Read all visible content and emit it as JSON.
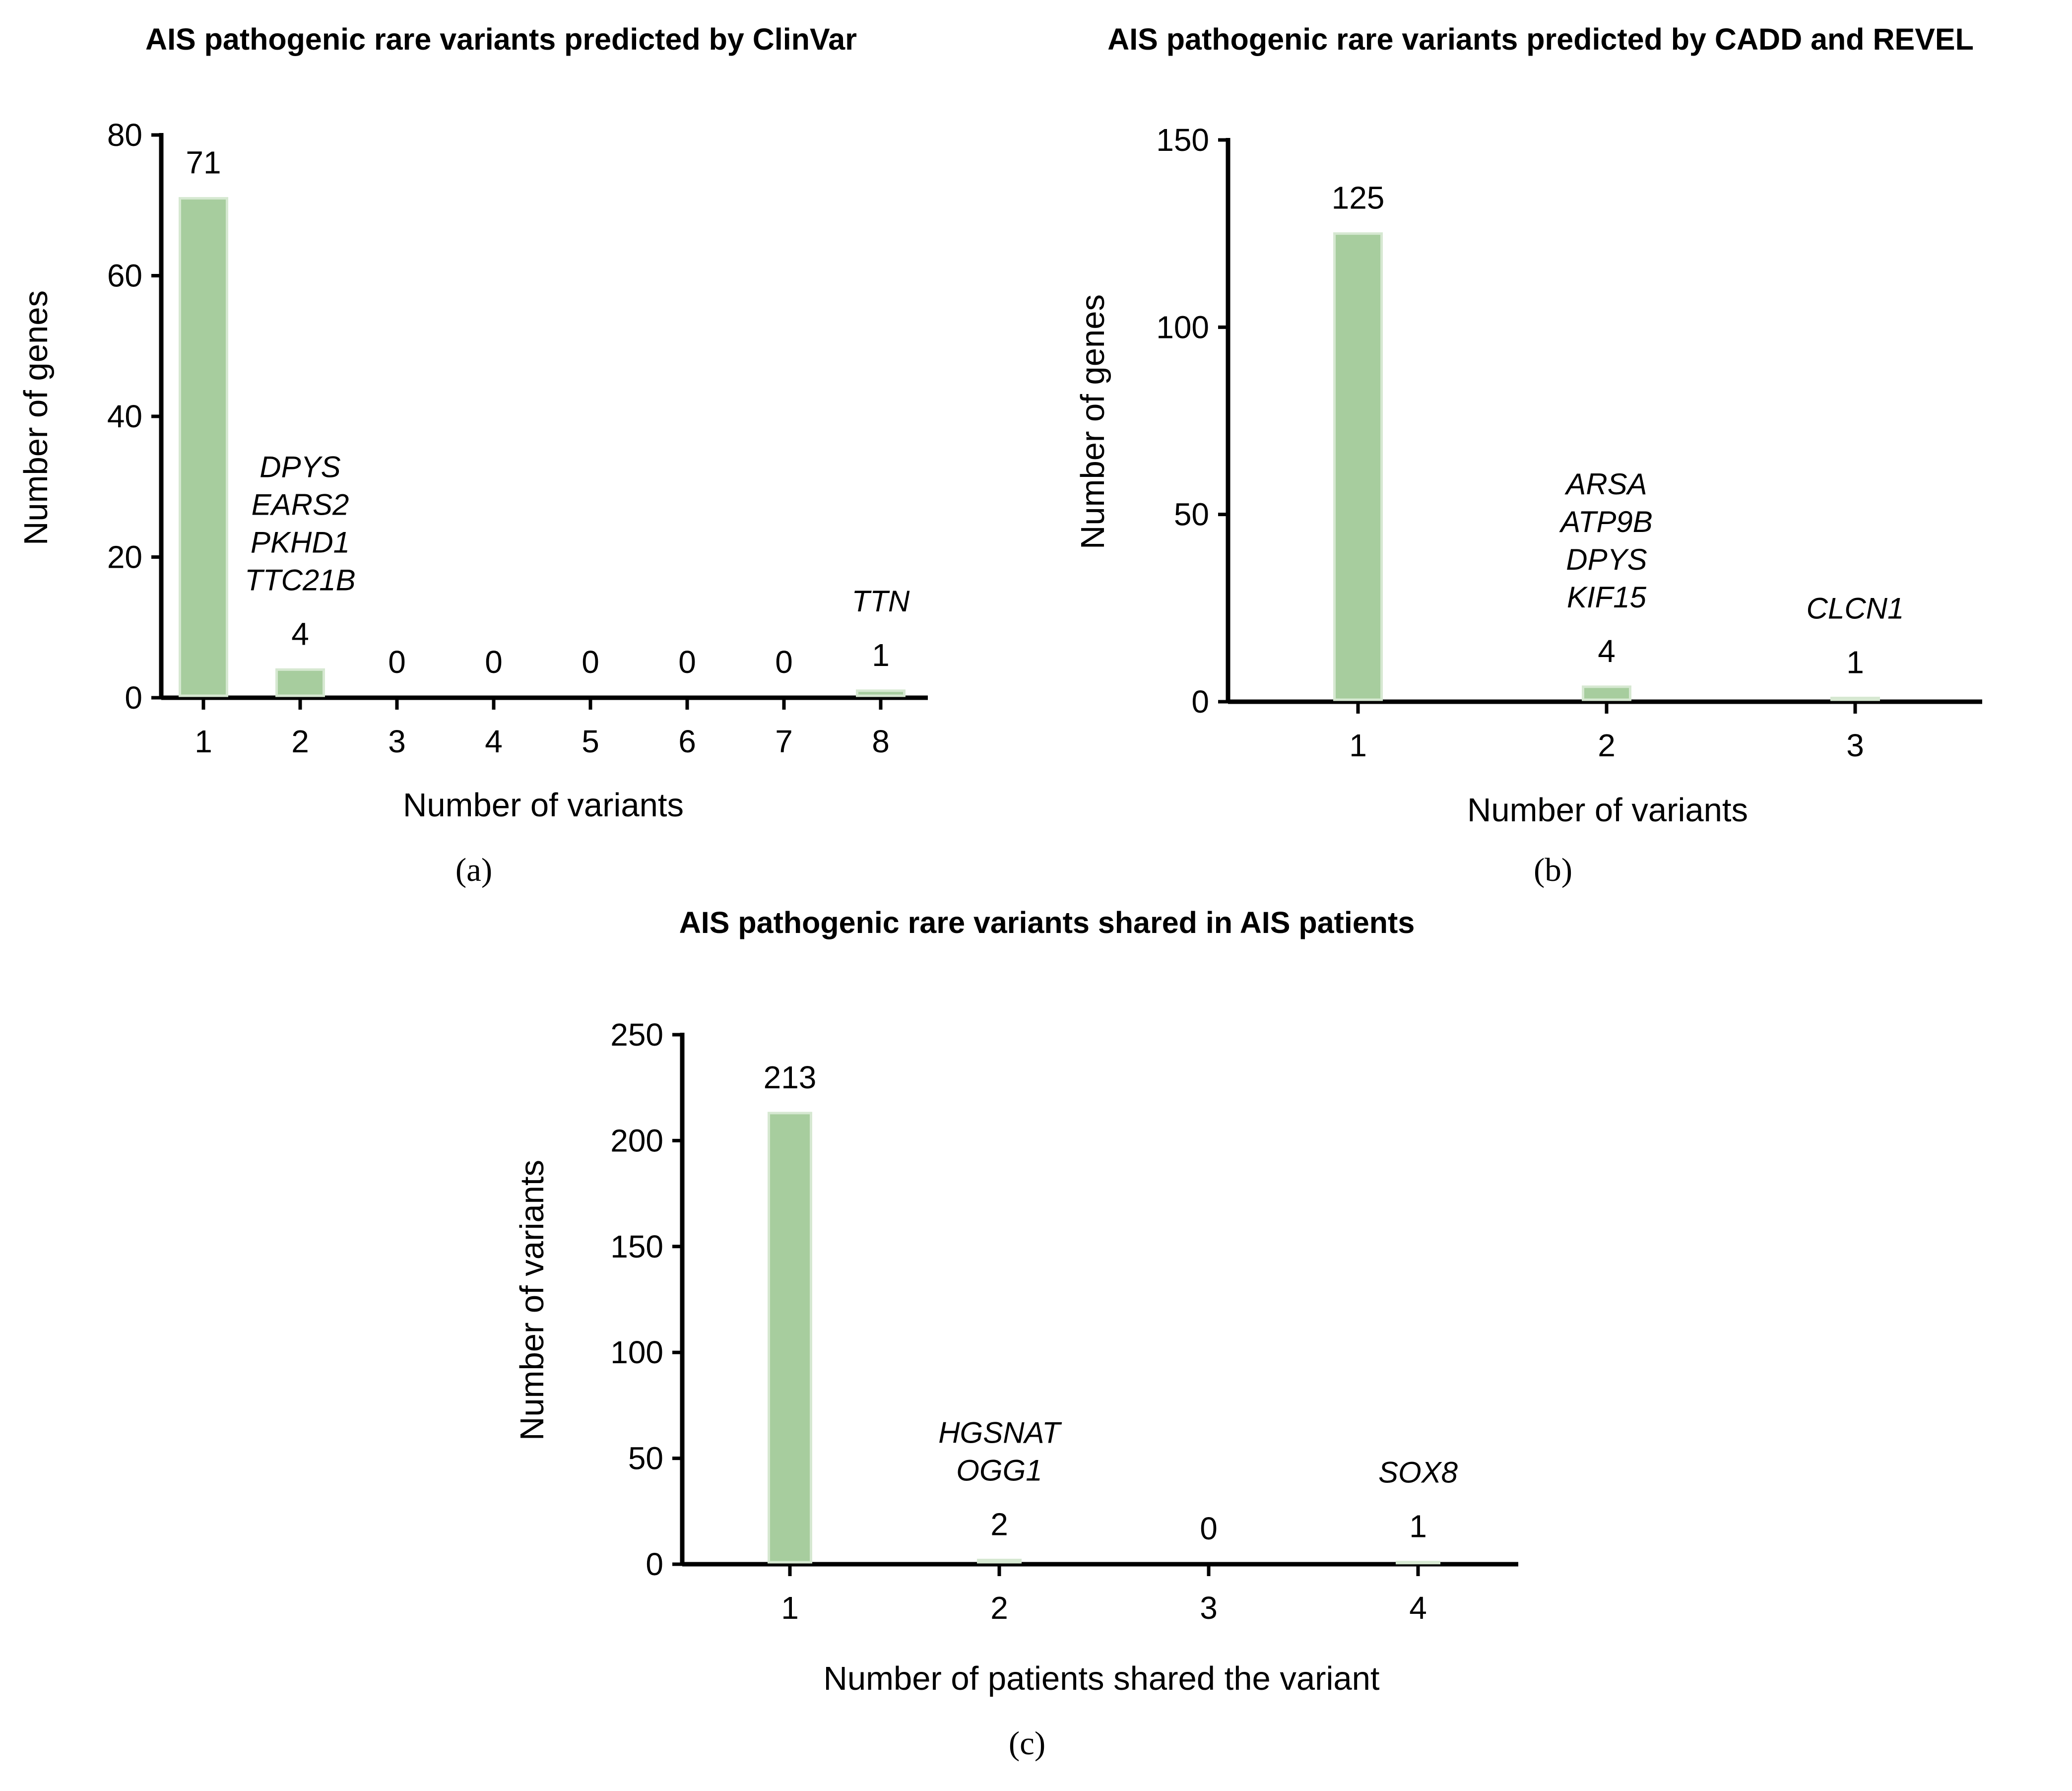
{
  "colors": {
    "bar_fill": "#a7cd9e",
    "bar_edge": "#d6e8d1",
    "axis": "#000000"
  },
  "chart_data": [
    {
      "type": "bar",
      "panel": "(a)",
      "title": "AIS pathogenic rare variants predicted by ClinVar",
      "xlabel": "Number of variants",
      "ylabel": "Number of genes",
      "ylim": [
        0,
        80
      ],
      "yticks": [
        0,
        20,
        40,
        60,
        80
      ],
      "categories": [
        "1",
        "2",
        "3",
        "4",
        "5",
        "6",
        "7",
        "8"
      ],
      "values": [
        71,
        4,
        0,
        0,
        0,
        0,
        0,
        1
      ],
      "gene_annotations": [
        [],
        [
          "DPYS",
          "EARS2",
          "PKHD1",
          "TTC21B"
        ],
        [],
        [],
        [],
        [],
        [],
        [
          "TTN"
        ]
      ]
    },
    {
      "type": "bar",
      "panel": "(b)",
      "title": "AIS pathogenic rare variants predicted by CADD and REVEL",
      "xlabel": "Number of variants",
      "ylabel": "Number of genes",
      "ylim": [
        0,
        150
      ],
      "yticks": [
        0,
        50,
        100,
        150
      ],
      "categories": [
        "1",
        "2",
        "3"
      ],
      "values": [
        125,
        4,
        1
      ],
      "gene_annotations": [
        [],
        [
          "ARSA",
          "ATP9B",
          "DPYS",
          "KIF15"
        ],
        [
          "CLCN1"
        ]
      ]
    },
    {
      "type": "bar",
      "panel": "(c)",
      "title": "AIS pathogenic rare variants shared in AIS patients",
      "xlabel": "Number of patients shared the variant",
      "ylabel": "Number of variants",
      "ylim": [
        0,
        250
      ],
      "yticks": [
        0,
        50,
        100,
        150,
        200,
        250
      ],
      "categories": [
        "1",
        "2",
        "3",
        "4"
      ],
      "values": [
        213,
        2,
        0,
        1
      ],
      "gene_annotations": [
        [],
        [
          "HGSNAT",
          "OGG1"
        ],
        [],
        [
          "SOX8"
        ]
      ]
    }
  ]
}
